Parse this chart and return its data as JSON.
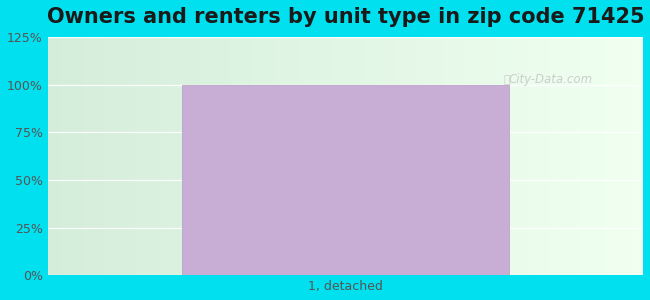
{
  "title": "Owners and renters by unit type in zip code 71425",
  "categories": [
    "1, detached"
  ],
  "values": [
    100
  ],
  "bar_color": "#c8aed4",
  "bar_edge_color": "#b898c8",
  "ylim": [
    0,
    125
  ],
  "yticks": [
    0,
    25,
    50,
    75,
    100,
    125
  ],
  "ytick_labels": [
    "0%",
    "25%",
    "50%",
    "75%",
    "100%",
    "125%"
  ],
  "outer_bg": "#00e0ee",
  "title_fontsize": 15,
  "tick_fontsize": 9,
  "watermark": "City-Data.com"
}
